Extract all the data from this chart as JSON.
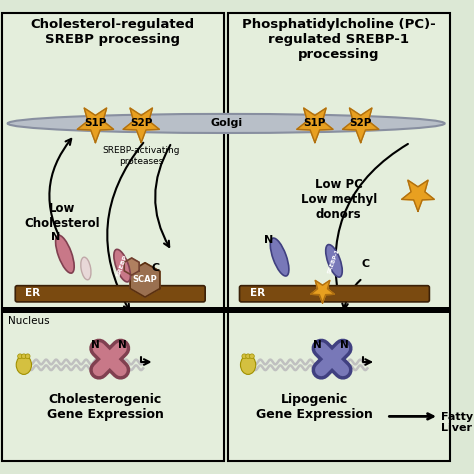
{
  "bg_color": "#dce8d5",
  "panel_color": "#e4eed e",
  "left_title": "Cholesterol-regulated\nSREBP processing",
  "right_title": "Phosphatidylcholine (PC)-\nregulated SREBP-1\nprocessing",
  "golgi_color": "#b8bfc8",
  "golgi_edge": "#888fa0",
  "golgi_label": "Golgi",
  "er_color": "#7a4a10",
  "er_edge": "#3a2008",
  "star_color": "#e8a020",
  "star_outline": "#b07010",
  "s1p_label": "S1P",
  "s2p_label": "S2P",
  "srebp_pink": "#c87888",
  "srebp_pink_edge": "#804050",
  "srebp_purple": "#7878b8",
  "srebp_purple_edge": "#404080",
  "scap_color": "#9a7050",
  "scap_edge": "#5a3010",
  "hex_color": "#9a7050",
  "low_cholesterol_text": "Low\nCholesterol",
  "low_pc_text": "Low PC\nLow methyl\ndonors",
  "proteases_text": "SREBP-activating\nproteases",
  "nucleus_text": "Nucleus",
  "left_bottom_text": "Cholesterogenic\nGene Expression",
  "right_bottom_text": "Lipogenic\nGene Expression",
  "fatty_liver_text": "Fatty\nLiver",
  "black": "#000000",
  "white": "#ffffff",
  "gray": "#c0c0c0",
  "ribosome_color": "#d4c040",
  "ribosome_edge": "#a09000"
}
